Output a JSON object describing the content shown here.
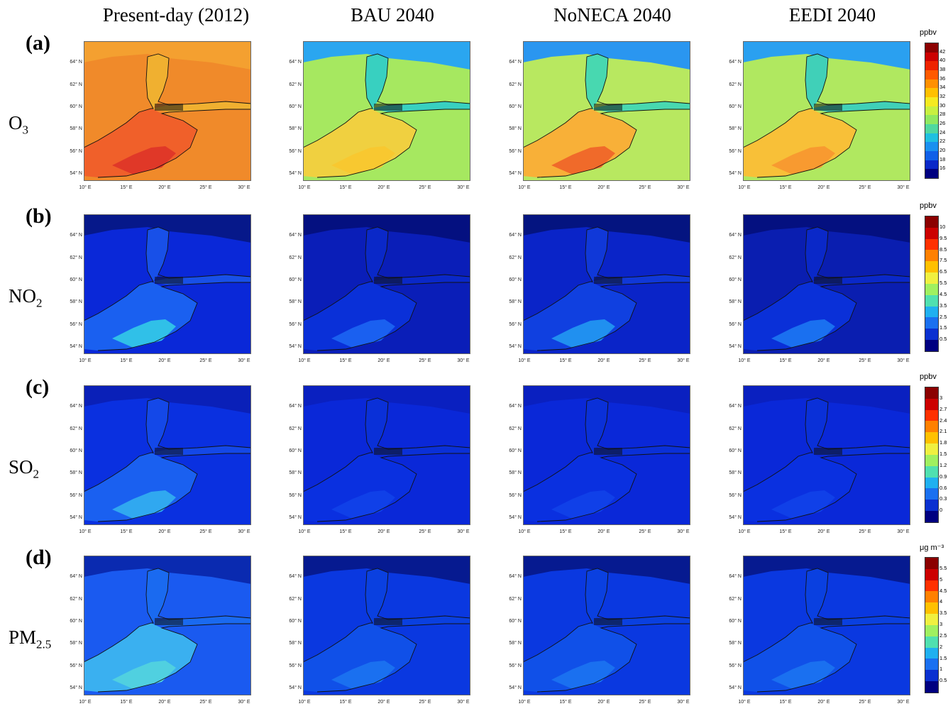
{
  "columns": [
    "Present-day (2012)",
    "BAU 2040",
    "NoNECA 2040",
    "EEDI 2040"
  ],
  "rows": [
    {
      "letter": "(a)",
      "species": "O",
      "sub": "3",
      "unit": "ppbv",
      "scale": [
        "42",
        "40",
        "38",
        "36",
        "34",
        "32",
        "30",
        "28",
        "26",
        "24",
        "22",
        "20",
        "18",
        "16"
      ],
      "colors": [
        "#8b0000",
        "#cc0000",
        "#ee2200",
        "#ff5a00",
        "#ff9000",
        "#ffc000",
        "#f5ea20",
        "#c8f040",
        "#90e860",
        "#50d8a0",
        "#20c0e0",
        "#1a90f0",
        "#1060e8",
        "#0a28c8",
        "#000080"
      ],
      "fills": {
        "Present-day (2012)": {
          "land": "#f08a2a",
          "north": "#f4a030",
          "sea": "#f0602a",
          "core": "#e03828",
          "gulf": "#f0b030"
        },
        "BAU 2040": {
          "land": "#a6e860",
          "north": "#2aa6f0",
          "sea": "#f0d040",
          "core": "#f8c830",
          "gulf": "#38d0c0"
        },
        "NoNECA 2040": {
          "land": "#b8e860",
          "north": "#2a96f0",
          "sea": "#f8b038",
          "core": "#f06a2a",
          "gulf": "#48d8b0"
        },
        "EEDI 2040": {
          "land": "#b0e860",
          "north": "#2aa0f0",
          "sea": "#f8c038",
          "core": "#f89a30",
          "gulf": "#40d0b8"
        }
      }
    },
    {
      "letter": "(b)",
      "species": "NO",
      "sub": "2",
      "unit": "ppbv",
      "scale": [
        "10",
        "9.5",
        "8.5",
        "7.5",
        "6.5",
        "5.5",
        "4.5",
        "3.5",
        "2.5",
        "1.5",
        "0.5"
      ],
      "colors": [
        "#8b0000",
        "#cc0000",
        "#ff3000",
        "#ff8000",
        "#ffc000",
        "#f0f040",
        "#a0f060",
        "#50e0b0",
        "#20b0f0",
        "#1a70f0",
        "#0a30d0",
        "#000080"
      ],
      "fills": {
        "Present-day (2012)": {
          "land": "#0a28d8",
          "north": "#06188a",
          "sea": "#1a60f0",
          "core": "#30c0e8",
          "gulf": "#1850e8"
        },
        "BAU 2040": {
          "land": "#0a1eb8",
          "north": "#041080",
          "sea": "#0a30d8",
          "core": "#1a60f0",
          "gulf": "#0a28c8"
        },
        "NoNECA 2040": {
          "land": "#0a24c8",
          "north": "#041480",
          "sea": "#1040e0",
          "core": "#2090f0",
          "gulf": "#1038d8"
        },
        "EEDI 2040": {
          "land": "#0a1eb0",
          "north": "#041080",
          "sea": "#0a30d8",
          "core": "#1a70f0",
          "gulf": "#0a28c8"
        }
      }
    },
    {
      "letter": "(c)",
      "species": "SO",
      "sub": "2",
      "unit": "ppbv",
      "scale": [
        "3",
        "2.7",
        "2.4",
        "2.1",
        "1.8",
        "1.5",
        "1.2",
        "0.9",
        "0.6",
        "0.3",
        "0"
      ],
      "colors": [
        "#8b0000",
        "#cc0000",
        "#ff3000",
        "#ff8000",
        "#ffc000",
        "#f0f040",
        "#a0f060",
        "#50e0b0",
        "#20b0f0",
        "#1a70f0",
        "#0a30d0",
        "#000080"
      ],
      "fills": {
        "Present-day (2012)": {
          "land": "#0a30e0",
          "north": "#0a20b8",
          "sea": "#1a60f0",
          "core": "#30a8f0",
          "gulf": "#1448e8"
        },
        "BAU 2040": {
          "land": "#0a28d8",
          "north": "#0a20c0",
          "sea": "#0a30e0",
          "core": "#1040e8",
          "gulf": "#0a30d8"
        },
        "NoNECA 2040": {
          "land": "#0a28d8",
          "north": "#0a20c0",
          "sea": "#0a30e0",
          "core": "#1040e8",
          "gulf": "#0a30d8"
        },
        "EEDI 2040": {
          "land": "#0a28d8",
          "north": "#0a20c0",
          "sea": "#0a30e0",
          "core": "#1040e8",
          "gulf": "#0a30d8"
        }
      }
    },
    {
      "letter": "(d)",
      "species": "PM",
      "sub": "2.5",
      "unit": "μg m⁻³",
      "scale": [
        "5.5",
        "5",
        "4.5",
        "4",
        "3.5",
        "3",
        "2.5",
        "2",
        "1.5",
        "1",
        "0.5"
      ],
      "colors": [
        "#8b0000",
        "#cc0000",
        "#ff3000",
        "#ff8000",
        "#ffc000",
        "#f0f040",
        "#a0f060",
        "#50e0b0",
        "#20b0f0",
        "#1a70f0",
        "#0a30d0",
        "#000080"
      ],
      "fills": {
        "Present-day (2012)": {
          "land": "#1a5af0",
          "north": "#0a2ab0",
          "sea": "#3ab0f0",
          "core": "#50d0e0",
          "gulf": "#1a6af0"
        },
        "BAU 2040": {
          "land": "#0a38e0",
          "north": "#061a90",
          "sea": "#1050e8",
          "core": "#1a70f0",
          "gulf": "#0a40e0"
        },
        "NoNECA 2040": {
          "land": "#0a38e0",
          "north": "#061a90",
          "sea": "#1050e8",
          "core": "#1a70f0",
          "gulf": "#0a40e0"
        },
        "EEDI 2040": {
          "land": "#0a38e0",
          "north": "#061a90",
          "sea": "#1050e8",
          "core": "#1a70f0",
          "gulf": "#0a40e0"
        }
      }
    }
  ],
  "lat_ticks": [
    "64° N",
    "62° N",
    "60° N",
    "58° N",
    "56° N",
    "54° N"
  ],
  "lon_ticks": [
    "10° E",
    "15° E",
    "20° E",
    "25° E",
    "30° E"
  ]
}
